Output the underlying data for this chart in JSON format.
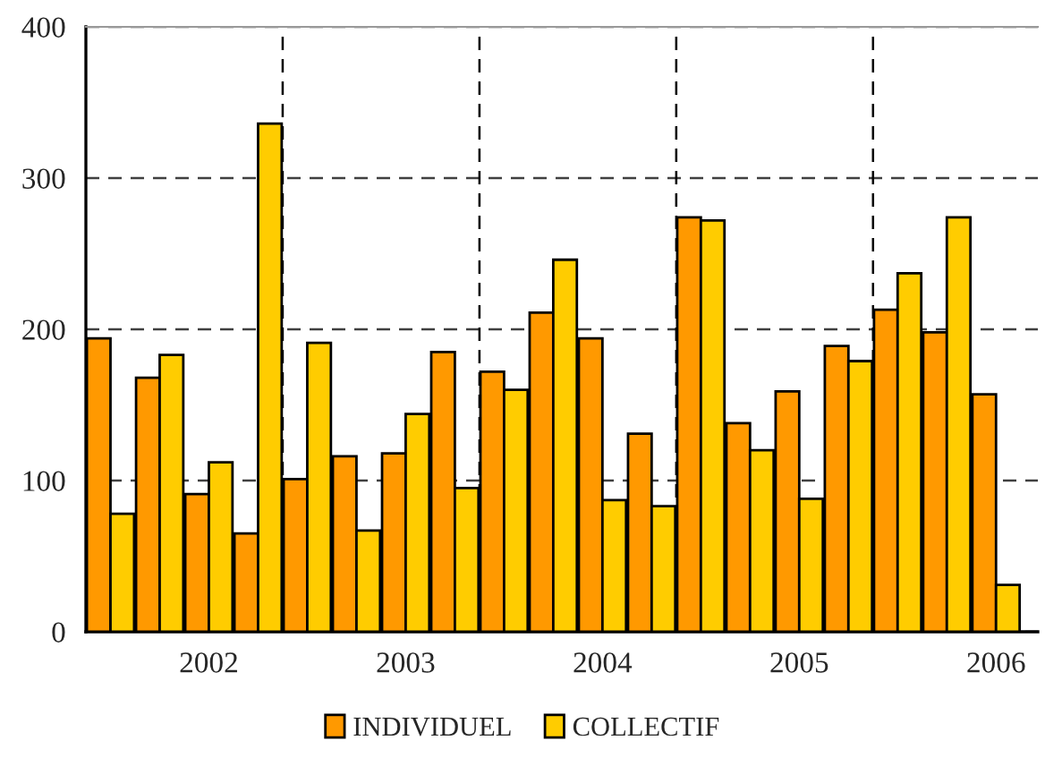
{
  "chart_data": {
    "type": "bar",
    "categories": [
      null,
      null,
      "2002",
      null,
      null,
      null,
      "2003",
      null,
      null,
      null,
      "2004",
      null,
      null,
      null,
      "2005",
      null,
      null,
      null,
      "2006"
    ],
    "ylim": [
      0,
      400
    ],
    "yticks": [
      0,
      100,
      200,
      300,
      400
    ],
    "grid": "y",
    "legend": "bottom",
    "series": [
      {
        "name": "INDIVIDUEL",
        "color": "#ff9900",
        "values": [
          194,
          168,
          91,
          65,
          101,
          116,
          118,
          185,
          172,
          211,
          194,
          131,
          274,
          138,
          159,
          189,
          213,
          198,
          157
        ]
      },
      {
        "name": "COLLECTIF",
        "color": "#ffcc00",
        "values": [
          78,
          183,
          112,
          336,
          191,
          67,
          144,
          95,
          160,
          246,
          87,
          83,
          272,
          120,
          88,
          179,
          237,
          274,
          31
        ]
      }
    ]
  }
}
